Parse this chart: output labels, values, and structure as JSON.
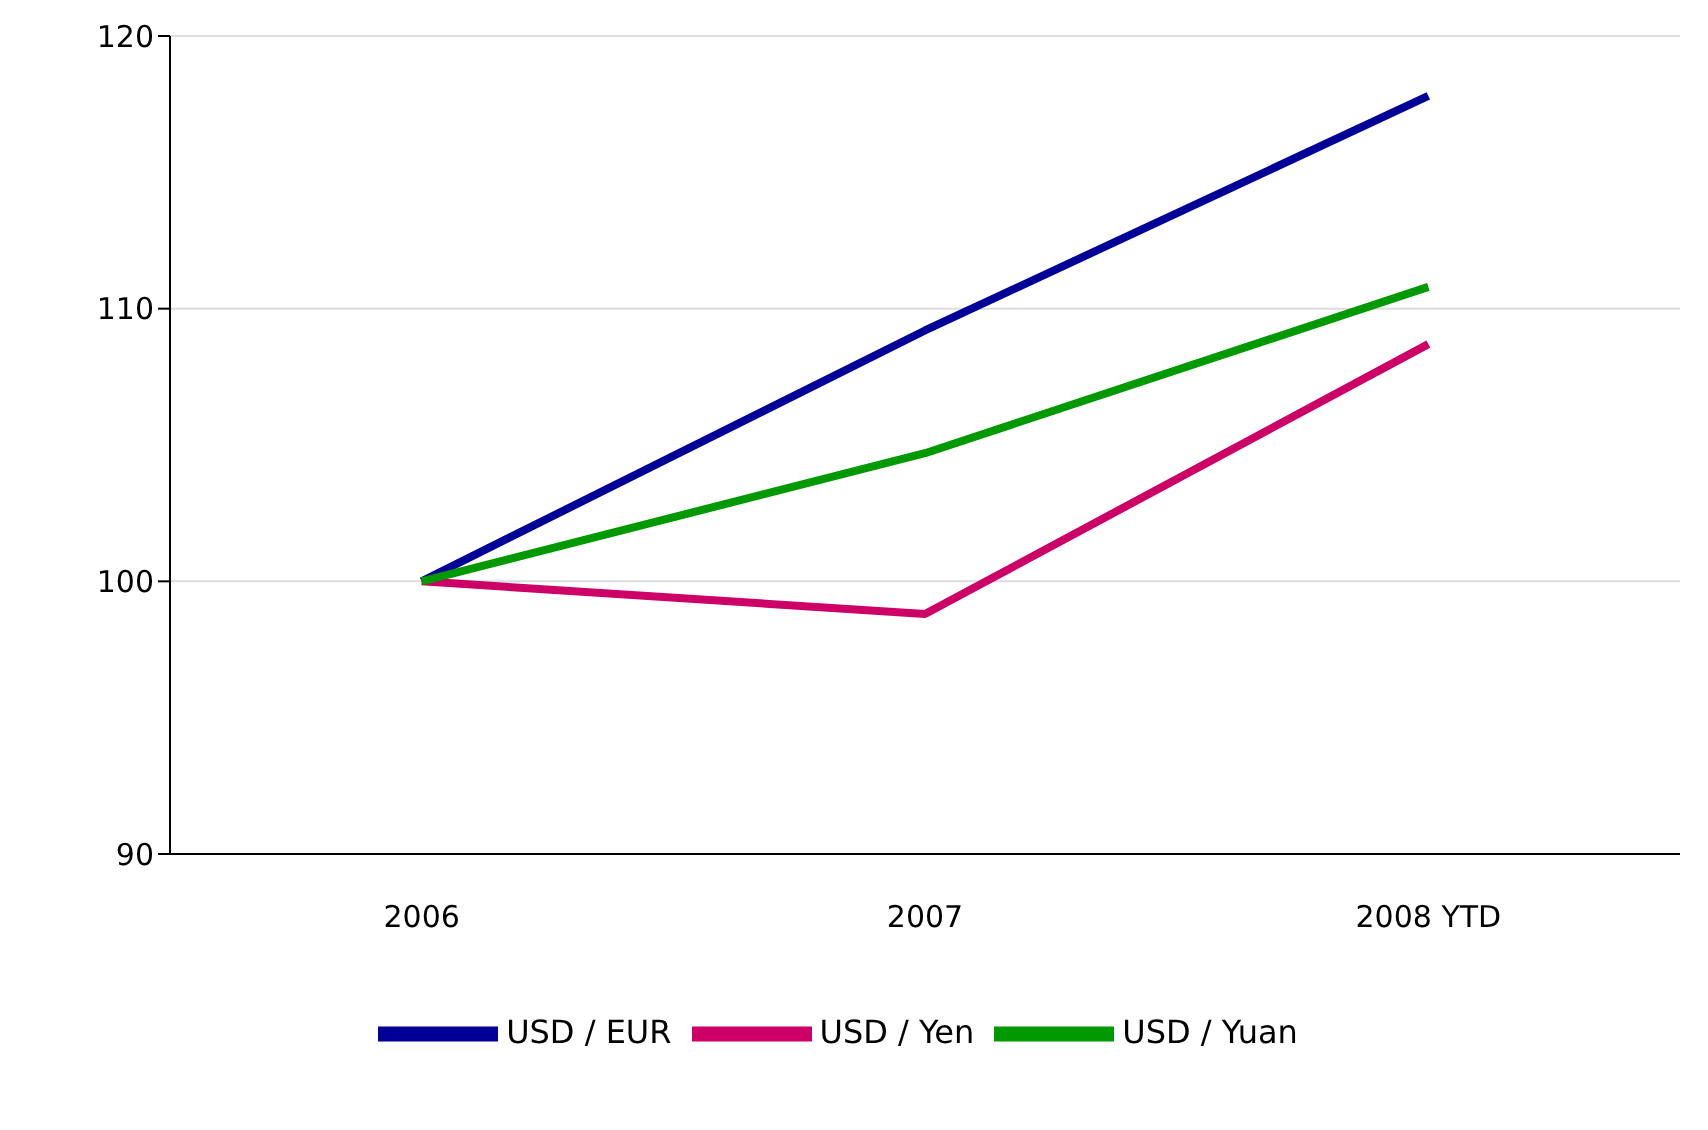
{
  "chart_data": {
    "type": "line",
    "categories": [
      "2006",
      "2007",
      "2008 YTD"
    ],
    "series": [
      {
        "name": "USD / EUR",
        "color": "#000099",
        "values": [
          100,
          109.2,
          117.8
        ]
      },
      {
        "name": "USD / Yen",
        "color": "#cc0066",
        "values": [
          100,
          98.8,
          108.7
        ]
      },
      {
        "name": "USD / Yuan",
        "color": "#009900",
        "values": [
          100,
          104.7,
          110.8
        ]
      }
    ],
    "ylim": [
      90,
      120
    ],
    "yticks": [
      90,
      100,
      110,
      120
    ],
    "grid": "y",
    "legend": "bottom",
    "marker": "none",
    "line_style": "solid"
  }
}
